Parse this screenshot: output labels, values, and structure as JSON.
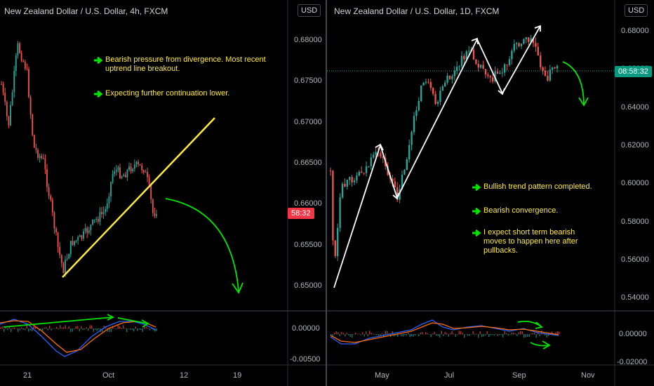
{
  "left_chart": {
    "title": "New Zealand Dollar / U.S. Dollar, 4h, FXCM",
    "currency": "USD",
    "price_labels": [
      "0.68000",
      "0.67500",
      "0.67000",
      "0.66500",
      "0.66000",
      "0.65500",
      "0.65000"
    ],
    "current_time_tag": "58:32",
    "indicator_labels": [
      "0.00000",
      "-0.00500"
    ],
    "time_labels": [
      "21",
      "Oct",
      "12",
      "19"
    ],
    "notes": [
      "Bearish pressure from divergence. Most recent uptrend line breakout.",
      "Expecting further continuation lower."
    ]
  },
  "right_chart": {
    "title": "New Zealand Dollar / U.S. Dollar, 1D, FXCM",
    "currency": "USD",
    "price_labels": [
      "0.68000",
      "0.66000",
      "0.64000",
      "0.62000",
      "0.60000",
      "0.58000",
      "0.56000",
      "0.54000"
    ],
    "current_time_tag": "08:58:32",
    "indicator_labels": [
      "0.00000",
      "-0.02000"
    ],
    "time_labels": [
      "May",
      "Jul",
      "Sep",
      "Nov"
    ],
    "notes": [
      "Bullish trend pattern completed.",
      "Bearish convergence.",
      "I expect short term bearish moves to happen here after pullbacks."
    ]
  },
  "colors": {
    "up": "#26a69a",
    "down": "#ef5350",
    "trendline": "#ffeb3b",
    "arrow": "#00e600",
    "note": "#ffeb3b",
    "tag_red": "#f23645",
    "tag_teal": "#089981"
  }
}
